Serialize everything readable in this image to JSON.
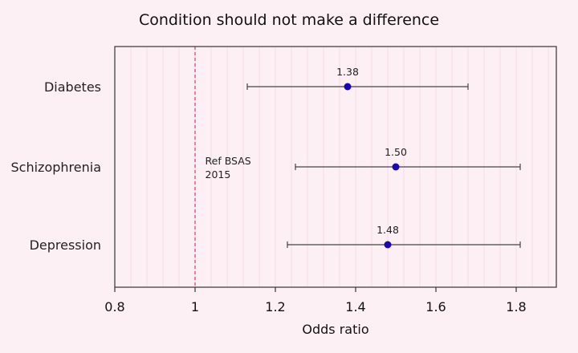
{
  "colors": {
    "background": "#fdf0f4",
    "panel": "#fdf0f4",
    "grid": "#f3d6df",
    "point": "#1a06b8",
    "errorbar": "#444444",
    "refline": "#e0447a",
    "frame": "#333333"
  },
  "chart_data": {
    "type": "forest",
    "title": "Condition should not make a difference",
    "xlabel": "Odds ratio",
    "ylabel": "",
    "xlim": [
      0.8,
      1.9
    ],
    "xticks": [
      0.8,
      1.0,
      1.2,
      1.4,
      1.6,
      1.8
    ],
    "xtick_labels": [
      "0.8",
      "1",
      "1.2",
      "1.4",
      "1.6",
      "1.8"
    ],
    "minor_grid_step": 0.04,
    "reference_line": {
      "x": 1.0,
      "style": "dashed"
    },
    "annotation": {
      "lines": [
        "Ref BSAS",
        "2015"
      ],
      "x": 1.025
    },
    "categories": [
      "Diabetes",
      "Schizophrenia",
      "Depression"
    ],
    "points": [
      {
        "label": "Diabetes",
        "estimate": 1.38,
        "lower": 1.13,
        "upper": 1.68,
        "value_label": "1.38"
      },
      {
        "label": "Schizophrenia",
        "estimate": 1.5,
        "lower": 1.25,
        "upper": 1.81,
        "value_label": "1.50"
      },
      {
        "label": "Depression",
        "estimate": 1.48,
        "lower": 1.23,
        "upper": 1.81,
        "value_label": "1.48"
      }
    ]
  }
}
